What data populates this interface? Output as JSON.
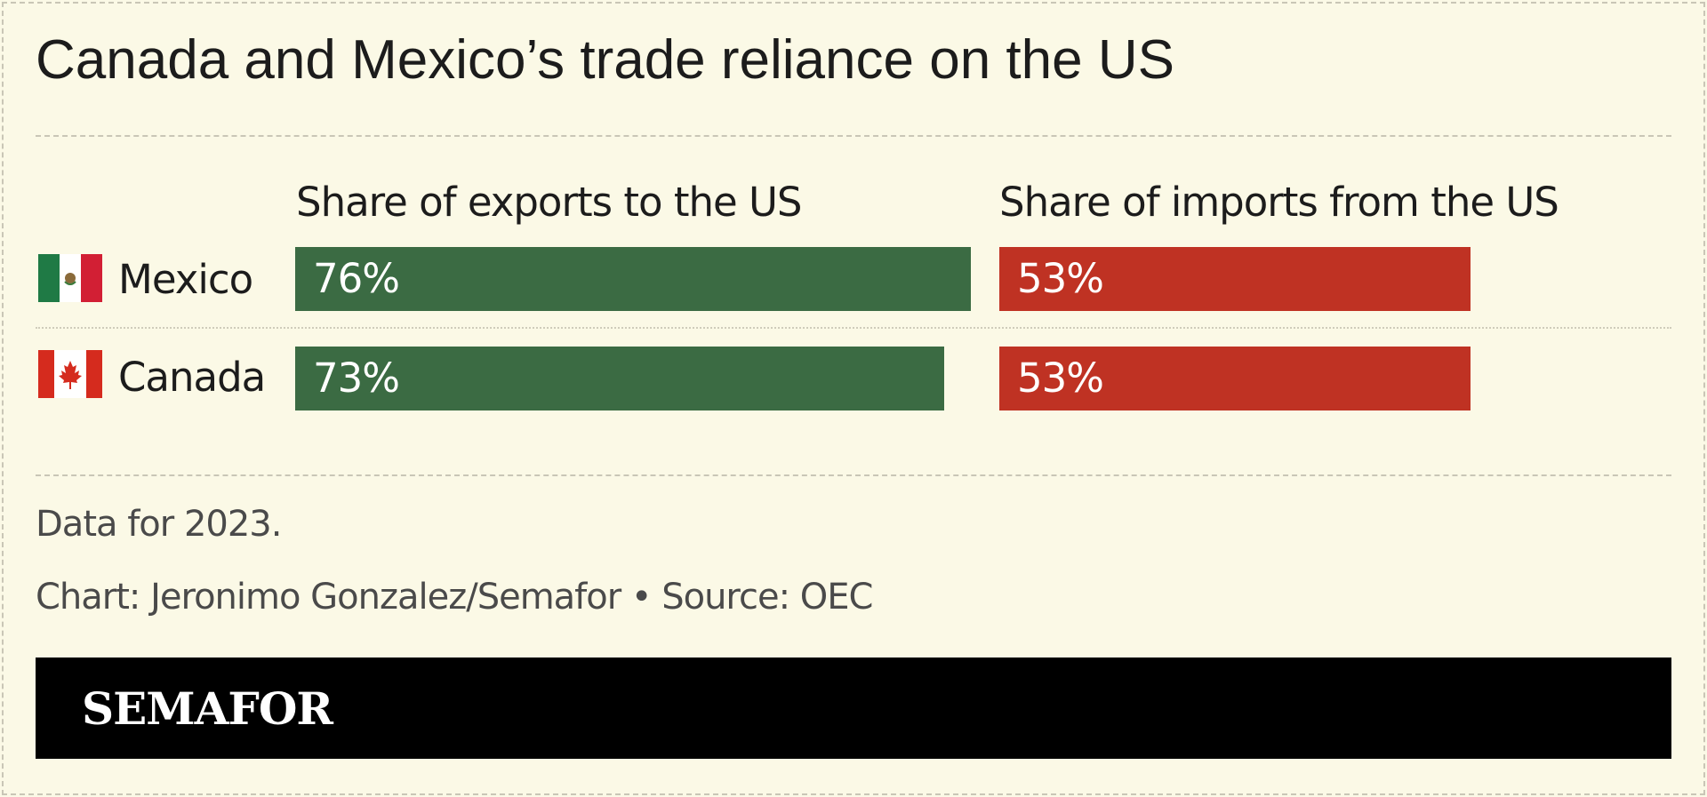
{
  "title": "Canada and Mexico’s trade reliance on the US",
  "chart_data": {
    "type": "bar",
    "categories": [
      "Mexico",
      "Canada"
    ],
    "series": [
      {
        "name": "Share of exports to the US",
        "values": [
          76,
          73
        ],
        "labels": [
          "76%",
          "73%"
        ],
        "color": "#3b6b43"
      },
      {
        "name": "Share of imports from the US",
        "values": [
          53,
          53
        ],
        "labels": [
          "53%",
          "53%"
        ],
        "color": "#bf3223"
      }
    ],
    "unit": "%",
    "xlim": [
      0,
      100
    ]
  },
  "flags": [
    {
      "country": "Mexico",
      "icon": "mexico-flag-icon"
    },
    {
      "country": "Canada",
      "icon": "canada-flag-icon"
    }
  ],
  "notes": {
    "data_year": "Data for 2023.",
    "credit": "Chart: Jeronimo Gonzalez/Semafor • Source: OEC"
  },
  "footer": {
    "logo": "SEMAFOR"
  },
  "colors": {
    "background": "#fbf9e6",
    "exports": "#3b6b43",
    "imports": "#bf3223",
    "footer": "#000000"
  }
}
